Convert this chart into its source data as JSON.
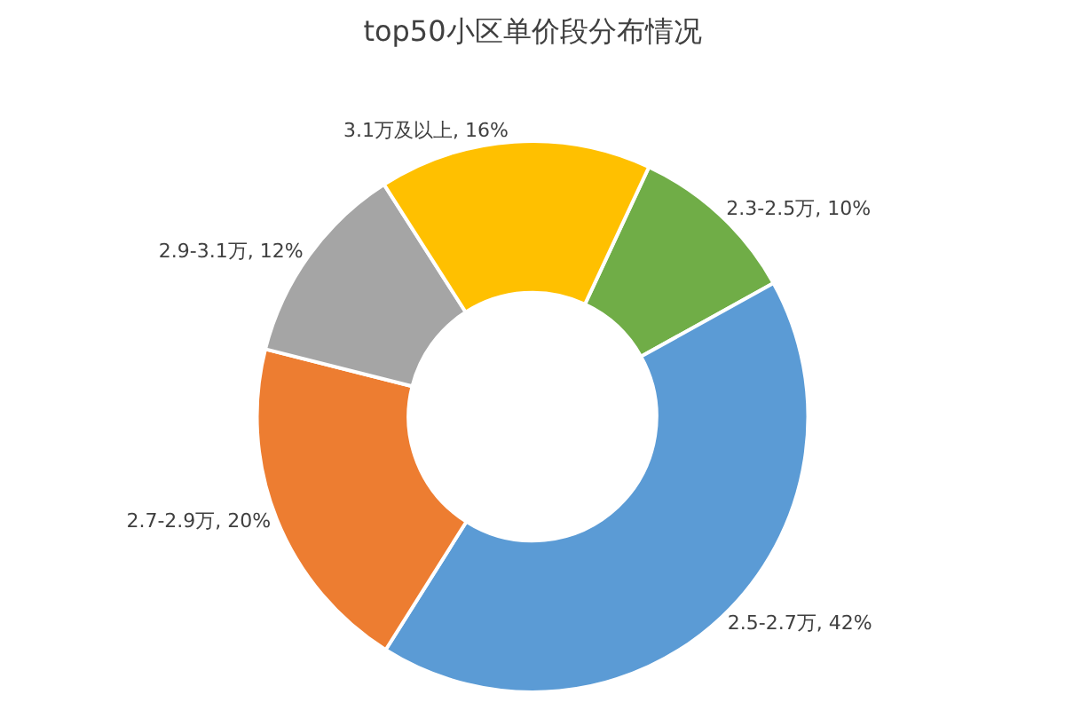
{
  "chart_data": {
    "type": "donut",
    "title": "top50小区单价段分布情况",
    "categories": [
      "2.3-2.5万",
      "2.5-2.7万",
      "2.7-2.9万",
      "2.9-3.1万",
      "3.1万及以上"
    ],
    "values": [
      10,
      42,
      20,
      12,
      16
    ],
    "colors": [
      "#70ad47",
      "#5b9bd5",
      "#ed7d31",
      "#a5a5a5",
      "#ffc000"
    ],
    "value_labels": [
      "10%",
      "42%",
      "20%",
      "12%",
      "16%"
    ],
    "legend": false
  }
}
